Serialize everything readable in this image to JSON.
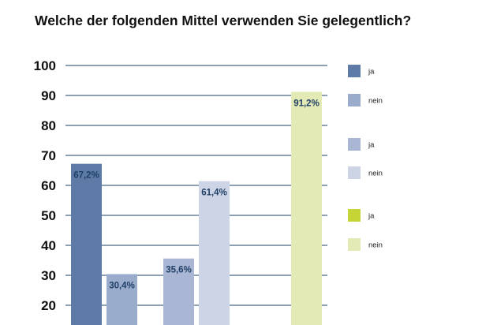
{
  "title": "Welche der folgenden Mittel verwenden Sie gelegentlich?",
  "chart_data": {
    "type": "bar",
    "title": "Welche der folgenden Mittel verwenden Sie gelegentlich?",
    "xlabel": "",
    "ylabel": "",
    "ylim": [
      15,
      100
    ],
    "grid": true,
    "yticks": [
      100,
      90,
      80,
      70,
      60,
      50,
      40,
      30,
      20
    ],
    "bars": [
      {
        "series": "ja",
        "group": 1,
        "value": 67.2,
        "label": "67,2%",
        "color": "#5e7aa6"
      },
      {
        "series": "nein",
        "group": 1,
        "value": 30.4,
        "label": "30,4%",
        "color": "#9aaccc"
      },
      {
        "series": "ja",
        "group": 2,
        "value": 35.6,
        "label": "35,6%",
        "color": "#a9b7d4"
      },
      {
        "series": "nein",
        "group": 2,
        "value": 61.4,
        "label": "61,4%",
        "color": "#cdd4e6"
      },
      {
        "series": "nein",
        "group": 3,
        "value": 91.2,
        "label": "91,2%",
        "color": "#e4eab5"
      }
    ],
    "legend": [
      {
        "label": "ja",
        "color": "#5e7aa6"
      },
      {
        "label": "nein",
        "color": "#9aaccc"
      },
      {
        "label": "ja",
        "color": "#a9b7d4"
      },
      {
        "label": "nein",
        "color": "#cdd4e6"
      },
      {
        "label": "ja",
        "color": "#c5d536"
      },
      {
        "label": "nein",
        "color": "#e4eab5"
      }
    ],
    "legend_position": "right",
    "grid_color": "#1f3f66"
  }
}
